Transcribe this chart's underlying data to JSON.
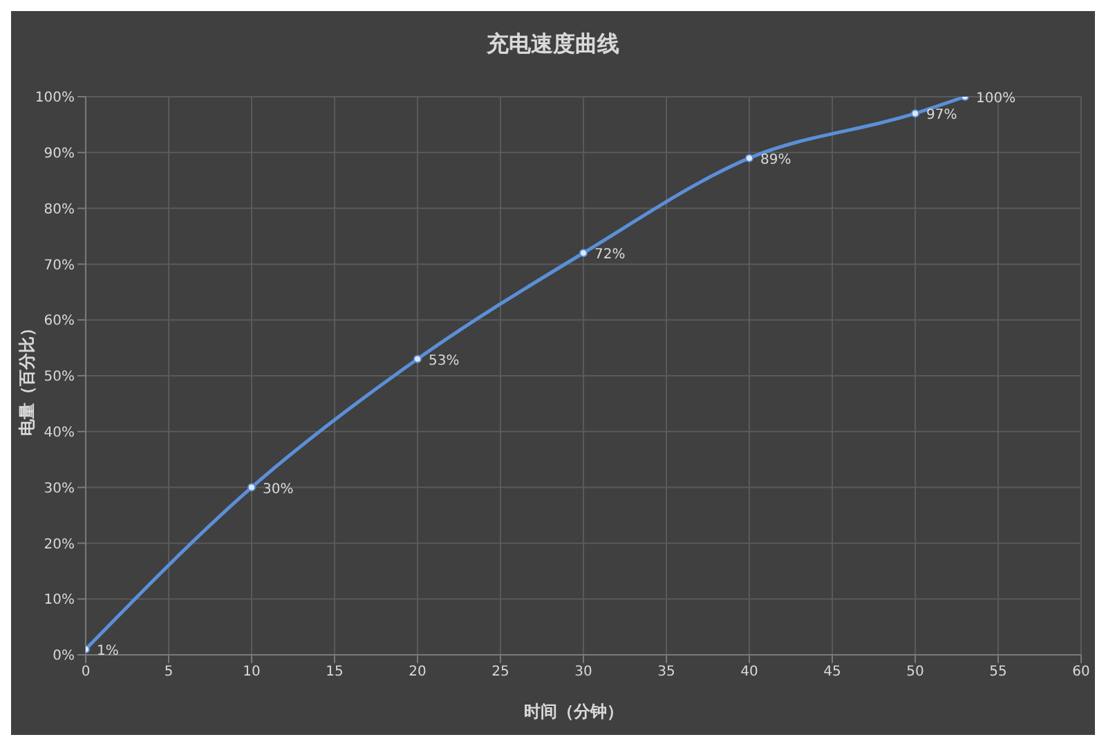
{
  "chart_data": {
    "type": "line",
    "title": "充电速度曲线",
    "xlabel": "时间（分钟）",
    "ylabel": "电量（百分比）",
    "x": [
      0,
      10,
      20,
      30,
      40,
      50,
      53
    ],
    "series": [
      {
        "color": "#5b8fd8",
        "values": [
          1,
          30,
          53,
          72,
          89,
          97,
          100
        ],
        "value_labels": [
          "1%",
          "30%",
          "53%",
          "72%",
          "89%",
          "97%",
          "100%"
        ]
      }
    ],
    "xlim": [
      0,
      60
    ],
    "xticks": [
      0,
      5,
      10,
      15,
      20,
      25,
      30,
      35,
      40,
      45,
      50,
      55,
      60
    ],
    "ylim": [
      0,
      100
    ],
    "yticks": [
      {
        "value": 0,
        "label": "0%"
      },
      {
        "value": 10,
        "label": "10%"
      },
      {
        "value": 20,
        "label": "20%"
      },
      {
        "value": 30,
        "label": "30%"
      },
      {
        "value": 40,
        "label": "40%"
      },
      {
        "value": 50,
        "label": "50%"
      },
      {
        "value": 60,
        "label": "60%"
      },
      {
        "value": 70,
        "label": "70%"
      },
      {
        "value": 80,
        "label": "80%"
      },
      {
        "value": 90,
        "label": "90%"
      },
      {
        "value": 100,
        "label": "100%"
      }
    ],
    "grid": true,
    "marker": "circle",
    "line_style": "solid",
    "legend": false
  }
}
